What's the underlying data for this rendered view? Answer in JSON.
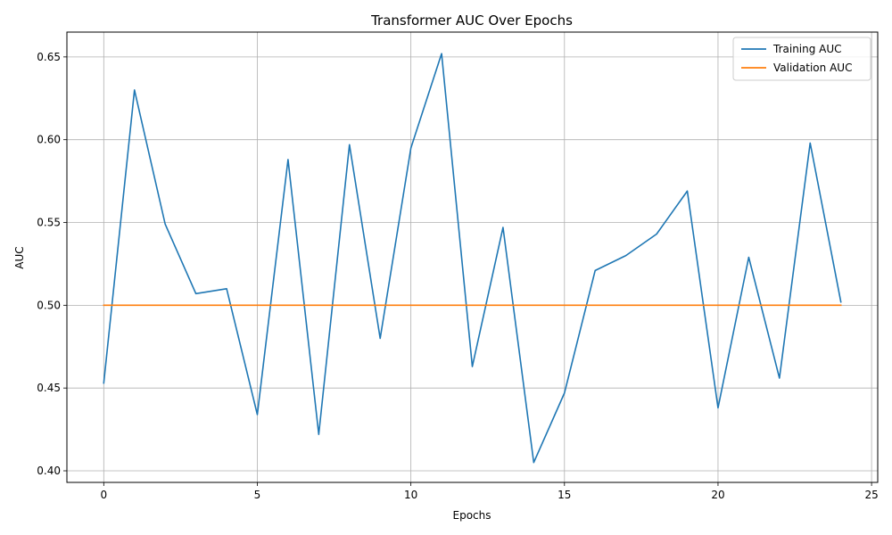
{
  "chart_data": {
    "type": "line",
    "title": "Transformer AUC Over Epochs",
    "xlabel": "Epochs",
    "ylabel": "AUC",
    "xlim": [
      -1.2,
      25.2
    ],
    "ylim": [
      0.393,
      0.665
    ],
    "x_ticks": [
      0,
      5,
      10,
      15,
      20,
      25
    ],
    "y_ticks": [
      0.4,
      0.45,
      0.5,
      0.55,
      0.6,
      0.65
    ],
    "y_tick_labels": [
      "0.40",
      "0.45",
      "0.50",
      "0.55",
      "0.60",
      "0.65"
    ],
    "grid": true,
    "legend_position": "top-right",
    "x": [
      0,
      1,
      2,
      3,
      4,
      5,
      6,
      7,
      8,
      9,
      10,
      11,
      12,
      13,
      14,
      15,
      16,
      17,
      18,
      19,
      20,
      21,
      22,
      23,
      24
    ],
    "series": [
      {
        "name": "Training AUC",
        "color": "#1f77b4",
        "values": [
          0.453,
          0.63,
          0.549,
          0.507,
          0.51,
          0.434,
          0.588,
          0.422,
          0.597,
          0.48,
          0.595,
          0.652,
          0.463,
          0.547,
          0.405,
          0.447,
          0.521,
          0.53,
          0.543,
          0.569,
          0.438,
          0.529,
          0.456,
          0.598,
          0.502
        ]
      },
      {
        "name": "Validation AUC",
        "color": "#ff7f0e",
        "values": [
          0.5,
          0.5,
          0.5,
          0.5,
          0.5,
          0.5,
          0.5,
          0.5,
          0.5,
          0.5,
          0.5,
          0.5,
          0.5,
          0.5,
          0.5,
          0.5,
          0.5,
          0.5,
          0.5,
          0.5,
          0.5,
          0.5,
          0.5,
          0.5,
          0.5
        ]
      }
    ]
  }
}
